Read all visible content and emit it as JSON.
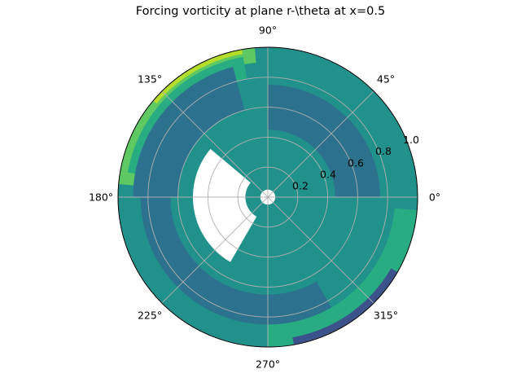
{
  "chart_data": {
    "type": "heatmap",
    "projection": "polar",
    "title": "Forcing vorticity at plane r-\\theta at x=0.5",
    "theta_tick_labels": [
      {
        "deg": 0,
        "label": "0°"
      },
      {
        "deg": 45,
        "label": "45°"
      },
      {
        "deg": 90,
        "label": "90°"
      },
      {
        "deg": 135,
        "label": "135°"
      },
      {
        "deg": 180,
        "label": "180°"
      },
      {
        "deg": 225,
        "label": "225°"
      },
      {
        "deg": 270,
        "label": "270°"
      },
      {
        "deg": 315,
        "label": "315°"
      }
    ],
    "r_ticks": [
      0.2,
      0.4,
      0.6,
      0.8,
      1.0
    ],
    "r_tick_labels": [
      "0.2",
      "0.4",
      "0.6",
      "0.8",
      "1.0"
    ],
    "r_label_angle_deg": 22.5,
    "rlim": [
      0,
      1.0
    ],
    "grid": true,
    "colormap": "viridis",
    "colors": {
      "level_low": "#3b528b",
      "level_mid_low": "#2c728e",
      "level_mid": "#21918c",
      "level_mid_high": "#27ad81",
      "level_high": "#5ec962",
      "level_top": "#b5de2b",
      "empty": "#ffffff",
      "grid": "#b0b0b0"
    },
    "regions": [
      {
        "r": [
          0.0,
          1.0
        ],
        "theta": [
          0,
          360
        ],
        "color": "level_mid"
      },
      {
        "r": [
          0.9,
          1.02
        ],
        "theta": [
          95,
          175
        ],
        "color": "level_high"
      },
      {
        "r": [
          0.97,
          1.02
        ],
        "theta": [
          100,
          140
        ],
        "color": "level_top"
      },
      {
        "r": [
          0.8,
          0.95
        ],
        "theta": [
          100,
          170
        ],
        "color": "level_mid_high"
      },
      {
        "r": [
          0.6,
          0.9
        ],
        "theta": [
          105,
          180
        ],
        "color": "level_mid_low"
      },
      {
        "r": [
          0.45,
          0.75
        ],
        "theta": [
          0,
          90
        ],
        "color": "level_mid_low"
      },
      {
        "r": [
          0.65,
          0.85
        ],
        "theta": [
          180,
          300
        ],
        "color": "level_mid_low"
      },
      {
        "r": [
          0.85,
          1.02
        ],
        "theta": [
          270,
          355
        ],
        "color": "level_mid_high"
      },
      {
        "r": [
          0.95,
          1.02
        ],
        "theta": [
          280,
          330
        ],
        "color": "level_low"
      },
      {
        "r": [
          0.15,
          0.5
        ],
        "theta": [
          140,
          240
        ],
        "color": "empty"
      },
      {
        "r": [
          0.0,
          0.05
        ],
        "theta": [
          0,
          360
        ],
        "color": "empty"
      }
    ]
  }
}
